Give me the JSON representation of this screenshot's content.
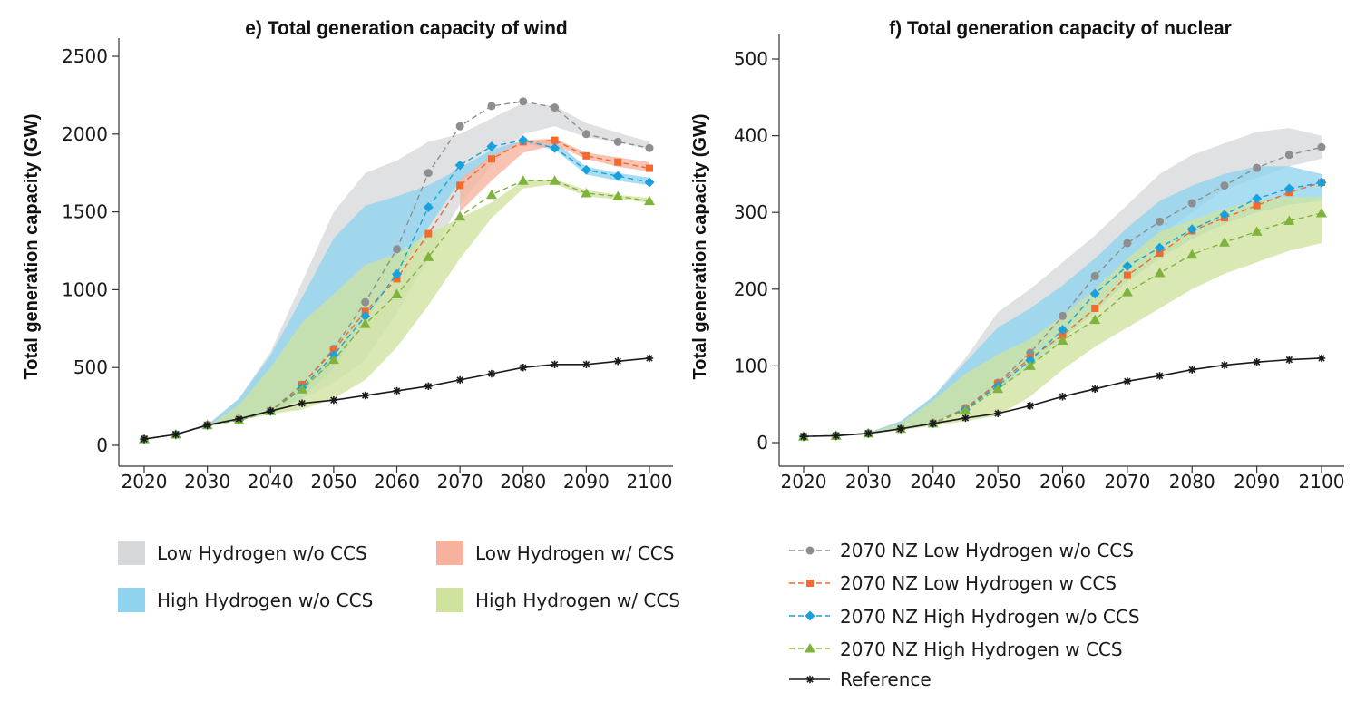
{
  "colors": {
    "band_low_h2_no_ccs": "#d7d8da",
    "band_low_h2_ccs": "#f6b29c",
    "band_high_h2_no_ccs": "#8fd3ee",
    "band_high_h2_ccs": "#cfe39f",
    "line_low_h2_no_ccs": "#8e8e90",
    "line_low_h2_ccs": "#f26a2c",
    "line_high_h2_no_ccs": "#1aa1dd",
    "line_high_h2_ccs": "#7fb33c",
    "line_reference": "#1a1a1a"
  },
  "legend": {
    "bands": [
      {
        "label": "Low Hydrogen w/o CCS",
        "color_key": "band_low_h2_no_ccs"
      },
      {
        "label": "Low Hydrogen w/ CCS",
        "color_key": "band_low_h2_ccs"
      },
      {
        "label": "High Hydrogen w/o CCS",
        "color_key": "band_high_h2_no_ccs"
      },
      {
        "label": "High Hydrogen w/ CCS",
        "color_key": "band_high_h2_ccs"
      }
    ],
    "lines": [
      {
        "label": "2070 NZ Low Hydrogen w/o CCS",
        "color_key": "line_low_h2_no_ccs",
        "marker": "circle"
      },
      {
        "label": "2070 NZ Low Hydrogen w CCS",
        "color_key": "line_low_h2_ccs",
        "marker": "square"
      },
      {
        "label": "2070 NZ High Hydrogen w/o CCS",
        "color_key": "line_high_h2_no_ccs",
        "marker": "diamond"
      },
      {
        "label": "2070 NZ High Hydrogen w CCS",
        "color_key": "line_high_h2_ccs",
        "marker": "triangle"
      },
      {
        "label": "Reference",
        "color_key": "line_reference",
        "marker": "star"
      }
    ]
  },
  "chart_data": [
    {
      "type": "line",
      "title": "e) Total generation capacity of wind",
      "ylabel": "Total generation capacity (GW)",
      "xlabel": "",
      "xlim": [
        2020,
        2100
      ],
      "ylim": [
        0,
        2500
      ],
      "xticks": [
        2020,
        2030,
        2040,
        2050,
        2060,
        2070,
        2080,
        2090,
        2100
      ],
      "yticks": [
        0,
        500,
        1000,
        1500,
        2000,
        2500
      ],
      "x": [
        2020,
        2025,
        2030,
        2035,
        2040,
        2045,
        2050,
        2055,
        2060,
        2065,
        2070,
        2075,
        2080,
        2085,
        2090,
        2095,
        2100
      ],
      "bands": [
        {
          "name": "Low Hydrogen w/o CCS",
          "color_key": "band_low_h2_no_ccs",
          "x": [
            2020,
            2025,
            2030,
            2035,
            2040,
            2045,
            2050,
            2055,
            2060,
            2065,
            2070,
            2075,
            2080,
            2085,
            2090,
            2095,
            2100
          ],
          "low": [
            40,
            70,
            120,
            160,
            210,
            300,
            400,
            550,
            850,
            1200,
            1550,
            1800,
            2000,
            2050,
            1980,
            1950,
            1900
          ],
          "high": [
            40,
            70,
            130,
            300,
            600,
            1050,
            1500,
            1750,
            1830,
            1950,
            2000,
            2100,
            2200,
            2180,
            2070,
            2010,
            1950
          ]
        },
        {
          "name": "High Hydrogen w/o CCS",
          "color_key": "band_high_h2_no_ccs",
          "x": [
            2020,
            2025,
            2030,
            2035,
            2040,
            2045,
            2050,
            2055,
            2060,
            2065,
            2070,
            2075,
            2080,
            2085,
            2090,
            2095,
            2100
          ],
          "low": [
            40,
            70,
            120,
            160,
            210,
            300,
            500,
            800,
            1100,
            1400,
            1700,
            1850,
            1940,
            1900,
            1740,
            1700,
            1670
          ],
          "high": [
            40,
            70,
            130,
            300,
            580,
            950,
            1330,
            1540,
            1600,
            1670,
            1780,
            1900,
            1960,
            1950,
            1790,
            1750,
            1720
          ]
        },
        {
          "name": "Low Hydrogen w/ CCS",
          "color_key": "band_low_h2_ccs",
          "x": [
            2070,
            2075,
            2080,
            2085,
            2090,
            2095,
            2100
          ],
          "low": [
            1500,
            1700,
            1880,
            1930,
            1840,
            1790,
            1760
          ],
          "high": [
            1710,
            1860,
            1960,
            1970,
            1880,
            1850,
            1820
          ]
        },
        {
          "name": "High Hydrogen w/ CCS",
          "color_key": "band_high_h2_ccs",
          "x": [
            2020,
            2025,
            2030,
            2035,
            2040,
            2045,
            2050,
            2055,
            2060,
            2065,
            2070,
            2075,
            2080,
            2085,
            2090,
            2095,
            2100
          ],
          "low": [
            40,
            70,
            120,
            160,
            200,
            230,
            300,
            420,
            630,
            900,
            1200,
            1460,
            1650,
            1680,
            1600,
            1580,
            1560
          ],
          "high": [
            40,
            70,
            120,
            260,
            500,
            790,
            970,
            1160,
            1230,
            1360,
            1460,
            1560,
            1700,
            1710,
            1640,
            1610,
            1590
          ]
        }
      ],
      "series": [
        {
          "name": "2070 NZ Low Hydrogen w/o CCS",
          "color_key": "line_low_h2_no_ccs",
          "marker": "circle",
          "dashed": true,
          "values": [
            40,
            70,
            130,
            160,
            220,
            390,
            620,
            920,
            1260,
            1750,
            2050,
            2180,
            2210,
            2170,
            2000,
            1950,
            1910
          ]
        },
        {
          "name": "2070 NZ Low Hydrogen w CCS",
          "color_key": "line_low_h2_ccs",
          "marker": "square",
          "dashed": true,
          "values": [
            40,
            70,
            130,
            160,
            220,
            390,
            610,
            860,
            1070,
            1360,
            1670,
            1840,
            1950,
            1960,
            1860,
            1820,
            1780
          ]
        },
        {
          "name": "2070 NZ High Hydrogen w/o CCS",
          "color_key": "line_high_h2_no_ccs",
          "marker": "diamond",
          "dashed": true,
          "values": [
            40,
            70,
            130,
            160,
            220,
            370,
            580,
            830,
            1100,
            1530,
            1800,
            1920,
            1960,
            1910,
            1770,
            1730,
            1690
          ]
        },
        {
          "name": "2070 NZ High Hydrogen w CCS",
          "color_key": "line_high_h2_ccs",
          "marker": "triangle",
          "dashed": true,
          "values": [
            40,
            70,
            130,
            160,
            220,
            360,
            550,
            780,
            970,
            1210,
            1470,
            1610,
            1700,
            1700,
            1620,
            1600,
            1570
          ]
        },
        {
          "name": "Reference",
          "color_key": "line_reference",
          "marker": "star",
          "dashed": false,
          "values": [
            40,
            70,
            130,
            170,
            220,
            270,
            290,
            320,
            350,
            380,
            420,
            460,
            500,
            520,
            520,
            540,
            560
          ]
        }
      ]
    },
    {
      "type": "line",
      "title": "f) Total generation capacity of nuclear",
      "ylabel": "Total generation capacity (GW)",
      "xlabel": "",
      "xlim": [
        2020,
        2100
      ],
      "ylim": [
        0,
        500
      ],
      "xticks": [
        2020,
        2030,
        2040,
        2050,
        2060,
        2070,
        2080,
        2090,
        2100
      ],
      "yticks": [
        0,
        100,
        200,
        300,
        400,
        500
      ],
      "x": [
        2020,
        2025,
        2030,
        2035,
        2040,
        2045,
        2050,
        2055,
        2060,
        2065,
        2070,
        2075,
        2080,
        2085,
        2090,
        2095,
        2100
      ],
      "bands": [
        {
          "name": "Low Hydrogen w/o CCS",
          "color_key": "band_low_h2_no_ccs",
          "x": [
            2020,
            2025,
            2030,
            2035,
            2040,
            2045,
            2050,
            2055,
            2060,
            2065,
            2070,
            2075,
            2080,
            2085,
            2090,
            2095,
            2100
          ],
          "low": [
            8,
            10,
            12,
            18,
            25,
            45,
            75,
            110,
            145,
            190,
            230,
            270,
            300,
            330,
            345,
            360,
            370
          ],
          "high": [
            8,
            10,
            13,
            28,
            60,
            110,
            170,
            200,
            235,
            270,
            310,
            350,
            375,
            390,
            405,
            410,
            400
          ]
        },
        {
          "name": "High Hydrogen w/o CCS",
          "color_key": "band_high_h2_no_ccs",
          "x": [
            2020,
            2025,
            2030,
            2035,
            2040,
            2045,
            2050,
            2055,
            2060,
            2065,
            2070,
            2075,
            2080,
            2085,
            2090,
            2095,
            2100
          ],
          "low": [
            8,
            10,
            12,
            18,
            25,
            45,
            70,
            100,
            135,
            170,
            210,
            240,
            265,
            285,
            300,
            310,
            315
          ],
          "high": [
            8,
            10,
            13,
            28,
            60,
            105,
            150,
            175,
            205,
            240,
            280,
            315,
            335,
            350,
            360,
            360,
            350
          ]
        },
        {
          "name": "High Hydrogen w/ CCS",
          "color_key": "band_high_h2_ccs",
          "x": [
            2020,
            2025,
            2030,
            2035,
            2040,
            2045,
            2050,
            2055,
            2060,
            2065,
            2070,
            2075,
            2080,
            2085,
            2090,
            2095,
            2100
          ],
          "low": [
            8,
            10,
            12,
            16,
            22,
            28,
            35,
            60,
            95,
            125,
            150,
            175,
            200,
            220,
            235,
            250,
            260
          ],
          "high": [
            8,
            10,
            13,
            25,
            55,
            90,
            115,
            135,
            165,
            200,
            240,
            275,
            290,
            305,
            315,
            320,
            320
          ]
        }
      ],
      "series": [
        {
          "name": "2070 NZ Low Hydrogen w/o CCS",
          "color_key": "line_low_h2_no_ccs",
          "marker": "circle",
          "dashed": true,
          "values": [
            8,
            9,
            12,
            18,
            25,
            45,
            78,
            117,
            165,
            217,
            260,
            288,
            312,
            335,
            358,
            375,
            385
          ]
        },
        {
          "name": "2070 NZ Low Hydrogen w CCS",
          "color_key": "line_low_h2_ccs",
          "marker": "square",
          "dashed": true,
          "values": [
            8,
            9,
            12,
            18,
            25,
            44,
            77,
            110,
            140,
            175,
            218,
            247,
            276,
            293,
            309,
            326,
            339
          ]
        },
        {
          "name": "2070 NZ High Hydrogen w/o CCS",
          "color_key": "line_high_h2_no_ccs",
          "marker": "diamond",
          "dashed": true,
          "values": [
            8,
            9,
            12,
            18,
            25,
            43,
            74,
            107,
            147,
            194,
            230,
            254,
            278,
            297,
            318,
            331,
            339
          ]
        },
        {
          "name": "2070 NZ High Hydrogen w CCS",
          "color_key": "line_high_h2_ccs",
          "marker": "triangle",
          "dashed": true,
          "values": [
            8,
            9,
            12,
            18,
            25,
            42,
            70,
            100,
            133,
            160,
            196,
            221,
            245,
            261,
            275,
            289,
            299
          ]
        },
        {
          "name": "Reference",
          "color_key": "line_reference",
          "marker": "star",
          "dashed": false,
          "values": [
            8,
            9,
            12,
            18,
            25,
            32,
            38,
            48,
            60,
            70,
            80,
            87,
            95,
            101,
            105,
            108,
            110
          ]
        }
      ]
    }
  ]
}
